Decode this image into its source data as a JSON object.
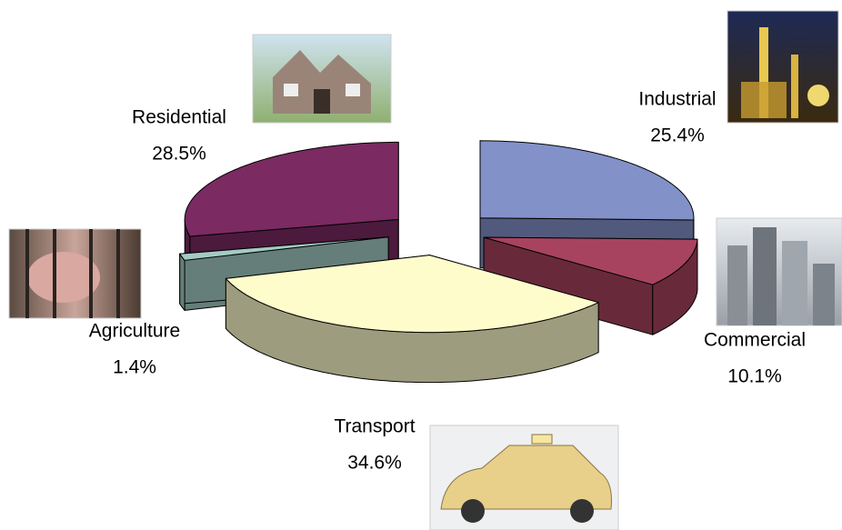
{
  "chart_data": {
    "type": "pie",
    "categories": [
      "Industrial",
      "Commercial",
      "Transport",
      "Agriculture",
      "Residential"
    ],
    "values": [
      25.4,
      10.1,
      34.6,
      1.4,
      28.5
    ],
    "value_labels": [
      "25.4%",
      "10.1%",
      "34.6%",
      "1.4%",
      "28.5%"
    ],
    "colors": [
      "#8391c9",
      "#a8435f",
      "#fffccb",
      "#a3cbc3",
      "#7b2a62"
    ]
  }
}
